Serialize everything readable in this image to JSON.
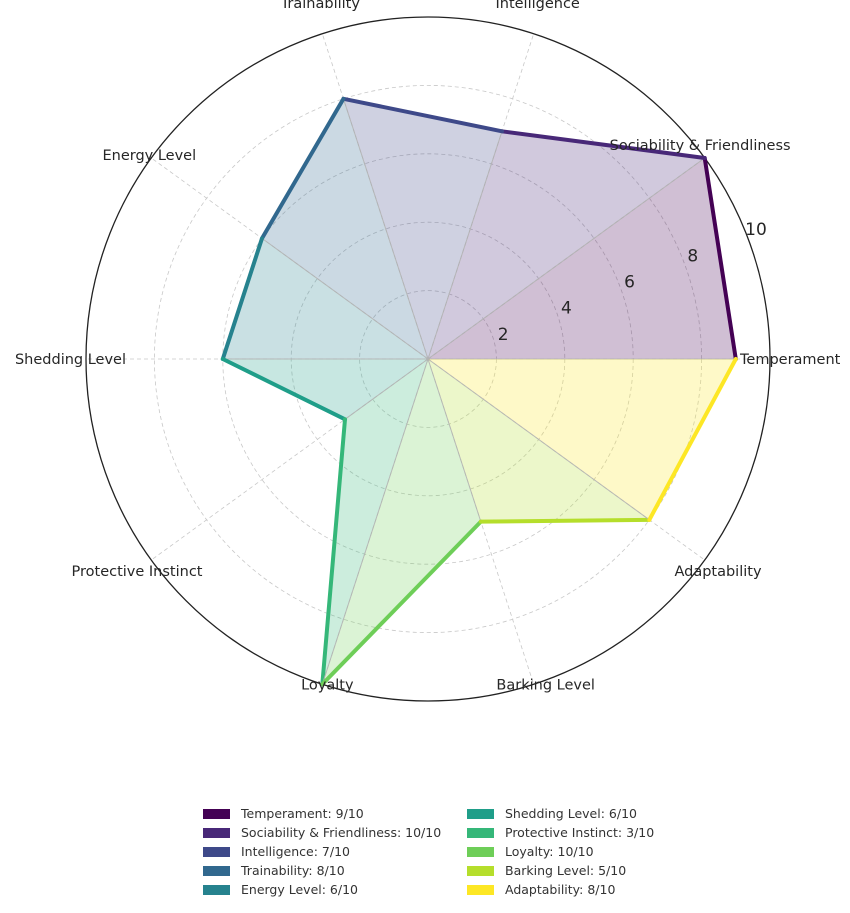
{
  "chart_data": {
    "type": "radar",
    "title": "",
    "rmax": 10,
    "radial_ticks": [
      2,
      4,
      6,
      8,
      10
    ],
    "axes": [
      "Temperament",
      "Sociability & Friendliness",
      "Intelligence",
      "Trainability",
      "Energy Level",
      "Shedding Level",
      "Protective Instinct",
      "Loyalty",
      "Barking Level",
      "Adaptability"
    ],
    "values": [
      9,
      10,
      7,
      8,
      6,
      6,
      3,
      10,
      5,
      8
    ],
    "colors": [
      "#440154",
      "#482878",
      "#3e4989",
      "#31688e",
      "#26828e",
      "#1f9e89",
      "#35b779",
      "#6ece58",
      "#b5de2b",
      "#fde725"
    ],
    "legend": [
      "Temperament: 9/10",
      "Sociability & Friendliness: 10/10",
      "Intelligence: 7/10",
      "Trainability: 8/10",
      "Energy Level: 6/10",
      "Shedding Level: 6/10",
      "Protective Instinct: 3/10",
      "Loyalty: 10/10",
      "Barking Level: 5/10",
      "Adaptability: 8/10"
    ],
    "legend_position": "bottom",
    "grid": true
  }
}
